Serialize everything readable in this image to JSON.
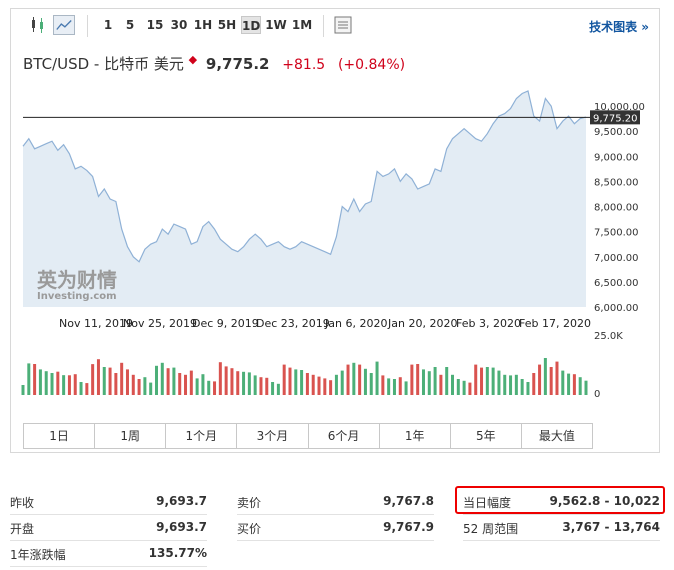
{
  "toolbar": {
    "intervals": [
      "1",
      "5",
      "15",
      "30",
      "1H",
      "5H",
      "1D",
      "1W",
      "1M"
    ],
    "active_interval": "1D",
    "advanced_link": "技术图表 »"
  },
  "header": {
    "instrument": "BTC/USD - 比特币 美元",
    "price": "9,775.2",
    "change": "+81.5",
    "change_pct": "(+0.84%)"
  },
  "watermark": {
    "cn": "英为财情",
    "en": "Investing.com"
  },
  "range_buttons": [
    "1日",
    "1周",
    "1个月",
    "3个月",
    "6个月",
    "1年",
    "5年",
    "最大值"
  ],
  "stats": {
    "col1": [
      {
        "label": "昨收",
        "value": "9,693.7"
      },
      {
        "label": "开盘",
        "value": "9,693.7"
      },
      {
        "label": "1年涨跌幅",
        "value": "135.77%"
      }
    ],
    "col2": [
      {
        "label": "卖价",
        "value": "9,767.8"
      },
      {
        "label": "买价",
        "value": "9,767.9"
      }
    ],
    "col3": [
      {
        "label": "当日幅度",
        "value": "9,562.8 - 10,022"
      },
      {
        "label": "52 周范围",
        "value": "3,767 - 13,764"
      }
    ]
  },
  "colors": {
    "up": "#4caf78",
    "down": "#d9534f",
    "line": "#8fb1d6",
    "area": "#e3ecf4",
    "accent_red": "#d0021b",
    "link": "#1256a0"
  },
  "chart_data": {
    "type": "area",
    "price_axis": {
      "ylim": [
        6000,
        10300
      ],
      "ticks": [
        6000,
        6500,
        7000,
        7500,
        8000,
        8500,
        9000,
        9500,
        10000
      ],
      "tick_labels": [
        "6,000.00",
        "6,500.00",
        "7,000.00",
        "7,500.00",
        "8,000.00",
        "8,500.00",
        "9,000.00",
        "9,500.00",
        "10,000.00"
      ],
      "current_label": "9,775.20",
      "current_value": 9775.2
    },
    "x_tick_labels": [
      "Nov 11, 2019",
      "Nov 25, 2019",
      "Dec 9, 2019",
      "Dec 23, 2019",
      "Jan 6, 2020",
      "Jan 20, 2020",
      "Feb 3, 2020",
      "Feb 17, 2020"
    ],
    "volume_axis": {
      "tick_labels": [
        "25.0K",
        "0"
      ],
      "max": 25000
    },
    "close": [
      9200,
      9350,
      9150,
      9200,
      9250,
      9300,
      9120,
      9230,
      9050,
      8750,
      8800,
      8720,
      8600,
      8200,
      8350,
      8150,
      8100,
      7550,
      7200,
      7000,
      6900,
      7150,
      7250,
      7300,
      7550,
      7450,
      7650,
      7600,
      7550,
      7250,
      7300,
      7600,
      7700,
      7550,
      7350,
      7250,
      7150,
      7100,
      7200,
      7350,
      7450,
      7350,
      7200,
      7250,
      7300,
      7200,
      7150,
      7200,
      7300,
      7250,
      7200,
      7150,
      7100,
      7050,
      7400,
      8000,
      7900,
      8150,
      7900,
      8050,
      8100,
      8700,
      8600,
      8650,
      8750,
      8500,
      8650,
      8550,
      8350,
      8400,
      8450,
      8750,
      8700,
      9150,
      9350,
      9450,
      9550,
      9450,
      9350,
      9300,
      9450,
      9650,
      9800,
      9850,
      9950,
      10150,
      10250,
      10300,
      9800,
      9700,
      10150,
      10000,
      9550,
      9700,
      9800,
      9650,
      9750,
      9780
    ]
  }
}
